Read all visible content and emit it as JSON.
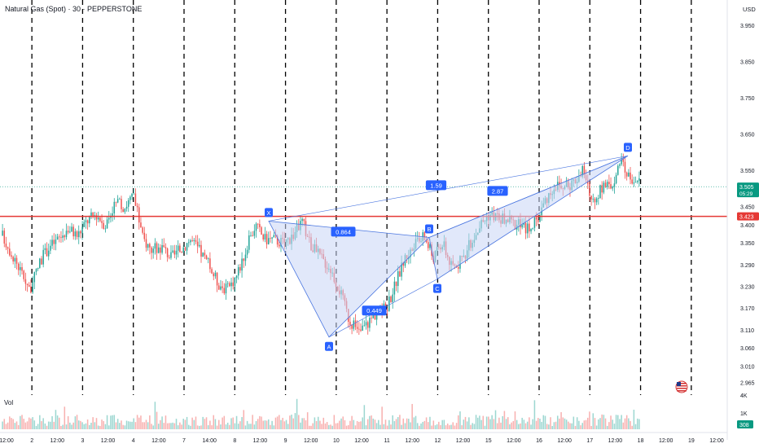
{
  "header": {
    "title": "Natural Gas (Spot) · 30 · PEPPERSTONE"
  },
  "currency": "USD",
  "volume_label": "Vol",
  "colors": {
    "up": "#26a69a",
    "down": "#ef5350",
    "pattern_fill": "#c9d6f5",
    "pattern_line": "#4a76e0",
    "pattern_label": "#2962ff",
    "resistance": "#e53935",
    "current_price": "#089981"
  },
  "chart_data": {
    "type": "candlestick",
    "ylim": [
      2.93,
      4.02
    ],
    "y_ticks": [
      "3.950",
      "3.850",
      "3.750",
      "3.650",
      "3.550",
      "3.450",
      "3.400",
      "3.350",
      "3.290",
      "3.230",
      "3.170",
      "3.110",
      "3.060",
      "3.010",
      "2.965"
    ],
    "x_ticks": [
      "12:00",
      "2",
      "12:00",
      "3",
      "12:00",
      "4",
      "12:00",
      "7",
      "14:00",
      "8",
      "12:00",
      "9",
      "12:00",
      "10",
      "12:00",
      "11",
      "12:00",
      "12",
      "12:00",
      "15",
      "12:00",
      "16",
      "12:00",
      "17",
      "12:00",
      "18",
      "12:00",
      "19",
      "12:00"
    ],
    "volume_ticks": [
      "4K",
      "1K"
    ],
    "price_badges": [
      {
        "label": "3.505",
        "sub": "05:29",
        "value": 3.505
      },
      {
        "label": "3.423",
        "value": 3.423
      }
    ],
    "volume_badge": "308",
    "resistance_level": 3.423,
    "current_price": 3.505,
    "harmonic_pattern": {
      "points": [
        {
          "name": "X",
          "value": 3.41
        },
        {
          "name": "A",
          "value": 3.09
        },
        {
          "name": "B",
          "value": 3.365
        },
        {
          "name": "C",
          "value": 3.25
        },
        {
          "name": "D",
          "value": 3.59
        }
      ],
      "ratios": [
        "1.59",
        "0.864",
        "0.449",
        "2.87"
      ]
    },
    "close_path": [
      3.37,
      3.32,
      3.27,
      3.22,
      3.3,
      3.34,
      3.36,
      3.39,
      3.37,
      3.41,
      3.43,
      3.4,
      3.46,
      3.45,
      3.48,
      3.36,
      3.33,
      3.34,
      3.31,
      3.33,
      3.36,
      3.33,
      3.29,
      3.24,
      3.22,
      3.26,
      3.33,
      3.4,
      3.36,
      3.36,
      3.35,
      3.37,
      3.41,
      3.34,
      3.31,
      3.28,
      3.22,
      3.14,
      3.1,
      3.13,
      3.16,
      3.17,
      3.24,
      3.31,
      3.34,
      3.37,
      3.31,
      3.35,
      3.28,
      3.3,
      3.35,
      3.4,
      3.43,
      3.42,
      3.41,
      3.4,
      3.39,
      3.41,
      3.47,
      3.51,
      3.5,
      3.52,
      3.55,
      3.46,
      3.5,
      3.51,
      3.57,
      3.53,
      3.52
    ]
  }
}
